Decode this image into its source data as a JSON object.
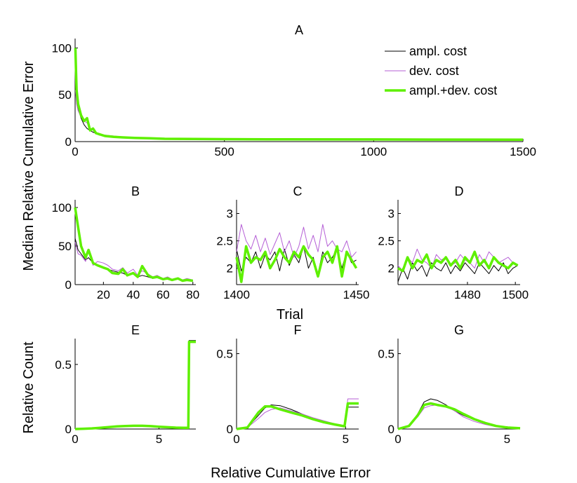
{
  "labels": {
    "ylabel_top": "Median Relative Cumulative Error",
    "xlabel_mid": "Trial",
    "ylabel_bottom": "Relative Count",
    "xlabel_bottom": "Relative Cumulative Error"
  },
  "legend": [
    {
      "name": "ampl. cost",
      "color": "#000000",
      "width": 1
    },
    {
      "name": "dev. cost",
      "color": "#b55fd6",
      "width": 1
    },
    {
      "name": "ampl.+dev. cost",
      "color": "#5ef000",
      "width": 3.5
    }
  ],
  "chart_data": [
    {
      "panel": "A",
      "type": "line",
      "title": "A",
      "xlim": [
        0,
        1500
      ],
      "ylim": [
        0,
        110
      ],
      "xticks": [
        0,
        500,
        1000,
        1500
      ],
      "yticks": [
        0,
        50,
        100
      ],
      "series": [
        {
          "name": "ampl. cost",
          "x": [
            1,
            5,
            10,
            20,
            30,
            40,
            50,
            60,
            70,
            80,
            100,
            130,
            160,
            200,
            250,
            300,
            400,
            500,
            700,
            1000,
            1200,
            1500
          ],
          "y": [
            62,
            48,
            35,
            25,
            18,
            14,
            12,
            10,
            9,
            7,
            6,
            5,
            4.5,
            4,
            3.5,
            3,
            2.8,
            2.6,
            2.4,
            2.3,
            2.2,
            2.1
          ]
        },
        {
          "name": "dev. cost",
          "x": [
            1,
            5,
            10,
            20,
            30,
            40,
            50,
            60,
            70,
            80,
            100,
            130,
            160,
            200,
            250,
            300,
            400,
            500,
            700,
            1000,
            1200,
            1500
          ],
          "y": [
            55,
            40,
            33,
            26,
            22,
            20,
            14,
            13,
            10,
            8,
            7,
            6,
            5,
            4.5,
            4,
            3.5,
            3.2,
            3,
            2.8,
            2.6,
            2.5,
            2.4
          ]
        },
        {
          "name": "ampl.+dev. cost",
          "x": [
            1,
            3,
            5,
            10,
            20,
            30,
            40,
            50,
            60,
            70,
            80,
            100,
            130,
            160,
            200,
            250,
            300,
            400,
            500,
            700,
            1000,
            1200,
            1500
          ],
          "y": [
            100,
            75,
            55,
            40,
            28,
            22,
            25,
            12,
            14,
            9,
            8,
            6,
            5,
            4.5,
            4,
            3.5,
            3,
            2.8,
            2.6,
            2.4,
            2.3,
            2.2,
            2.1
          ]
        }
      ]
    },
    {
      "panel": "B",
      "type": "line",
      "title": "B",
      "xlim": [
        1,
        82
      ],
      "ylim": [
        0,
        110
      ],
      "xticks": [
        20,
        40,
        60,
        80
      ],
      "yticks": [
        0,
        50,
        100
      ],
      "series": [
        {
          "name": "ampl. cost",
          "x": [
            1,
            3,
            5,
            8,
            10,
            13,
            16,
            20,
            23,
            26,
            30,
            33,
            36,
            40,
            43,
            46,
            50,
            53,
            56,
            60,
            63,
            66,
            70,
            73,
            76,
            80
          ],
          "y": [
            60,
            45,
            40,
            32,
            35,
            28,
            24,
            22,
            20,
            18,
            16,
            15,
            12,
            14,
            10,
            12,
            10,
            8,
            9,
            7,
            8,
            6,
            7,
            5,
            6,
            5
          ]
        },
        {
          "name": "dev. cost",
          "x": [
            1,
            3,
            5,
            8,
            10,
            13,
            16,
            20,
            23,
            26,
            30,
            33,
            36,
            40,
            43,
            46,
            50,
            53,
            56,
            60,
            63,
            66,
            70,
            73,
            76,
            80
          ],
          "y": [
            55,
            40,
            38,
            30,
            45,
            25,
            30,
            28,
            25,
            20,
            18,
            22,
            15,
            20,
            12,
            18,
            14,
            10,
            12,
            8,
            10,
            7,
            9,
            6,
            8,
            6
          ]
        },
        {
          "name": "ampl.+dev. cost",
          "x": [
            1,
            3,
            5,
            8,
            10,
            13,
            16,
            20,
            23,
            26,
            30,
            33,
            36,
            40,
            43,
            46,
            50,
            53,
            56,
            60,
            63,
            66,
            70,
            73,
            76,
            80
          ],
          "y": [
            100,
            75,
            50,
            35,
            45,
            28,
            25,
            22,
            20,
            15,
            14,
            20,
            12,
            15,
            10,
            24,
            12,
            9,
            10,
            7,
            8,
            6,
            8,
            5,
            6,
            5
          ]
        }
      ]
    },
    {
      "panel": "C",
      "type": "line",
      "title": "C",
      "xlim": [
        1400,
        1451
      ],
      "ylim": [
        1.7,
        3.25
      ],
      "xticks": [
        1400,
        1450
      ],
      "yticks": [
        2,
        2.5,
        3
      ],
      "series": [
        {
          "name": "ampl. cost",
          "x": [
            1400,
            1402,
            1404,
            1406,
            1408,
            1410,
            1412,
            1414,
            1416,
            1418,
            1420,
            1422,
            1424,
            1426,
            1428,
            1430,
            1432,
            1434,
            1436,
            1438,
            1440,
            1442,
            1444,
            1446,
            1448,
            1450
          ],
          "y": [
            2.35,
            1.95,
            2.2,
            2.1,
            2.3,
            2.0,
            2.25,
            2.15,
            2.3,
            1.95,
            2.35,
            2.05,
            2.25,
            2.1,
            2.4,
            2.0,
            2.2,
            1.9,
            2.3,
            2.1,
            2.2,
            2.35,
            2.0,
            2.3,
            2.1,
            2.15
          ]
        },
        {
          "name": "dev. cost",
          "x": [
            1400,
            1402,
            1404,
            1406,
            1408,
            1410,
            1412,
            1414,
            1416,
            1418,
            1420,
            1422,
            1424,
            1426,
            1428,
            1430,
            1432,
            1434,
            1436,
            1438,
            1440,
            1442,
            1444,
            1446,
            1448,
            1450
          ],
          "y": [
            2.3,
            2.8,
            2.5,
            2.35,
            2.6,
            2.3,
            2.55,
            2.25,
            2.45,
            2.65,
            2.3,
            2.5,
            2.2,
            2.4,
            2.75,
            2.35,
            2.6,
            2.3,
            2.8,
            2.4,
            2.5,
            2.35,
            2.3,
            2.5,
            2.2,
            2.3
          ]
        },
        {
          "name": "ampl.+dev. cost",
          "x": [
            1400,
            1402,
            1404,
            1406,
            1408,
            1410,
            1412,
            1414,
            1416,
            1418,
            1420,
            1422,
            1424,
            1426,
            1428,
            1430,
            1432,
            1434,
            1436,
            1438,
            1440,
            1442,
            1444,
            1446,
            1448,
            1450
          ],
          "y": [
            2.2,
            1.75,
            2.4,
            2.1,
            2.2,
            2.15,
            2.3,
            2.0,
            2.15,
            2.35,
            2.2,
            2.1,
            2.3,
            2.2,
            2.4,
            2.25,
            2.15,
            1.85,
            2.2,
            2.3,
            2.1,
            2.4,
            1.85,
            2.3,
            2.15,
            2.0
          ]
        }
      ]
    },
    {
      "panel": "D",
      "type": "line",
      "title": "D",
      "xlim": [
        1451,
        1502
      ],
      "ylim": [
        1.7,
        3.25
      ],
      "xticks": [
        1480,
        1500
      ],
      "yticks": [
        2,
        2.5,
        3
      ],
      "series": [
        {
          "name": "ampl. cost",
          "x": [
            1451,
            1453,
            1455,
            1457,
            1459,
            1461,
            1463,
            1465,
            1467,
            1469,
            1471,
            1473,
            1475,
            1477,
            1479,
            1481,
            1483,
            1485,
            1487,
            1489,
            1491,
            1493,
            1495,
            1497,
            1499,
            1501
          ],
          "y": [
            1.75,
            2.0,
            1.8,
            2.1,
            1.95,
            2.05,
            1.85,
            2.1,
            2.0,
            1.95,
            2.1,
            1.9,
            2.05,
            1.95,
            2.1,
            2.0,
            1.9,
            2.1,
            2.0,
            1.9,
            2.05,
            1.95,
            2.1,
            1.9,
            2.0,
            2.05
          ]
        },
        {
          "name": "dev. cost",
          "x": [
            1451,
            1453,
            1455,
            1457,
            1459,
            1461,
            1463,
            1465,
            1467,
            1469,
            1471,
            1473,
            1475,
            1477,
            1479,
            1481,
            1483,
            1485,
            1487,
            1489,
            1491,
            1493,
            1495,
            1497,
            1499,
            1501
          ],
          "y": [
            2.05,
            1.95,
            2.2,
            2.1,
            2.35,
            2.15,
            2.1,
            2.0,
            2.25,
            2.15,
            2.2,
            2.05,
            2.1,
            2.25,
            2.15,
            2.1,
            2.0,
            2.25,
            2.1,
            2.3,
            2.2,
            2.1,
            2.15,
            2.2,
            2.1,
            2.05
          ]
        },
        {
          "name": "ampl.+dev. cost",
          "x": [
            1451,
            1453,
            1455,
            1457,
            1459,
            1461,
            1463,
            1465,
            1467,
            1469,
            1471,
            1473,
            1475,
            1477,
            1479,
            1481,
            1483,
            1485,
            1487,
            1489,
            1491,
            1493,
            1495,
            1497,
            1499,
            1501
          ],
          "y": [
            2.0,
            1.95,
            2.2,
            2.0,
            2.15,
            2.1,
            2.25,
            2.0,
            2.15,
            2.1,
            2.2,
            2.05,
            2.15,
            2.0,
            2.2,
            2.1,
            2.3,
            2.05,
            2.15,
            2.0,
            2.2,
            2.1,
            2.05,
            2.0,
            2.1,
            2.05
          ]
        }
      ]
    },
    {
      "panel": "E",
      "type": "line",
      "title": "E",
      "xlim": [
        0,
        7.2
      ],
      "ylim": [
        0,
        0.7
      ],
      "xticks": [
        0,
        5
      ],
      "yticks": [
        0,
        0.5
      ],
      "series": [
        {
          "name": "ampl. cost",
          "x": [
            0,
            0.5,
            1,
            1.5,
            2,
            2.5,
            3,
            3.5,
            4,
            4.5,
            5,
            5.5,
            6,
            6.5,
            6.75,
            6.8,
            7.2
          ],
          "y": [
            0,
            0.002,
            0.005,
            0.01,
            0.015,
            0.02,
            0.025,
            0.025,
            0.025,
            0.022,
            0.018,
            0.015,
            0.012,
            0.01,
            0.01,
            0.685,
            0.685
          ]
        },
        {
          "name": "dev. cost",
          "x": [
            0,
            0.5,
            1,
            1.5,
            2,
            2.5,
            3,
            3.5,
            4,
            4.5,
            5,
            5.5,
            6,
            6.5,
            6.75,
            6.8,
            7.2
          ],
          "y": [
            0,
            0.002,
            0.004,
            0.008,
            0.012,
            0.017,
            0.02,
            0.022,
            0.022,
            0.02,
            0.016,
            0.013,
            0.01,
            0.008,
            0.008,
            0.68,
            0.68
          ]
        },
        {
          "name": "ampl.+dev. cost",
          "x": [
            0,
            0.5,
            1,
            1.5,
            2,
            2.5,
            3,
            3.5,
            4,
            4.5,
            5,
            5.5,
            6,
            6.5,
            6.75,
            6.8,
            7.2
          ],
          "y": [
            0,
            0.002,
            0.005,
            0.01,
            0.015,
            0.02,
            0.023,
            0.025,
            0.025,
            0.022,
            0.018,
            0.014,
            0.011,
            0.009,
            0.009,
            0.675,
            0.675
          ]
        }
      ]
    },
    {
      "panel": "F",
      "type": "line",
      "title": "F",
      "xlim": [
        0,
        5.6
      ],
      "ylim": [
        0,
        0.6
      ],
      "xticks": [
        0,
        5
      ],
      "yticks": [
        0,
        0.5
      ],
      "series": [
        {
          "name": "ampl. cost",
          "x": [
            0,
            0.5,
            1.0,
            1.3,
            1.6,
            2.0,
            2.5,
            3.0,
            3.5,
            4.0,
            4.5,
            4.95,
            5.1,
            5.6
          ],
          "y": [
            0,
            0.01,
            0.09,
            0.14,
            0.16,
            0.155,
            0.13,
            0.1,
            0.07,
            0.045,
            0.025,
            0.015,
            0.145,
            0.145
          ]
        },
        {
          "name": "dev. cost",
          "x": [
            0,
            0.5,
            1.0,
            1.3,
            1.6,
            2.0,
            2.5,
            3.0,
            3.5,
            4.0,
            4.5,
            4.95,
            5.1,
            5.6
          ],
          "y": [
            0,
            0.01,
            0.07,
            0.11,
            0.13,
            0.14,
            0.12,
            0.1,
            0.075,
            0.055,
            0.035,
            0.02,
            0.2,
            0.2
          ]
        },
        {
          "name": "ampl.+dev. cost",
          "x": [
            0,
            0.5,
            1.0,
            1.3,
            1.6,
            2.0,
            2.5,
            3.0,
            3.5,
            4.0,
            4.5,
            4.95,
            5.1,
            5.6
          ],
          "y": [
            0,
            0.01,
            0.11,
            0.15,
            0.15,
            0.13,
            0.11,
            0.09,
            0.065,
            0.045,
            0.03,
            0.018,
            0.17,
            0.17
          ]
        }
      ]
    },
    {
      "panel": "G",
      "type": "line",
      "title": "G",
      "xlim": [
        0,
        5.6
      ],
      "ylim": [
        0,
        0.6
      ],
      "xticks": [
        0,
        5
      ],
      "yticks": [
        0,
        0.5
      ],
      "series": [
        {
          "name": "ampl. cost",
          "x": [
            0,
            0.5,
            0.9,
            1.2,
            1.5,
            1.8,
            2.2,
            2.6,
            3.0,
            3.5,
            4.0,
            4.5,
            5.0,
            5.6
          ],
          "y": [
            0,
            0.02,
            0.1,
            0.18,
            0.2,
            0.19,
            0.16,
            0.12,
            0.09,
            0.06,
            0.035,
            0.02,
            0.01,
            0.005
          ]
        },
        {
          "name": "dev. cost",
          "x": [
            0,
            0.5,
            0.9,
            1.2,
            1.5,
            1.8,
            2.2,
            2.6,
            3.0,
            3.5,
            4.0,
            4.5,
            5.0,
            5.6
          ],
          "y": [
            0,
            0.02,
            0.08,
            0.14,
            0.155,
            0.16,
            0.15,
            0.12,
            0.08,
            0.05,
            0.03,
            0.015,
            0.008,
            0.004
          ]
        },
        {
          "name": "ampl.+dev. cost",
          "x": [
            0,
            0.5,
            0.9,
            1.2,
            1.5,
            1.8,
            2.2,
            2.6,
            3.0,
            3.5,
            4.0,
            4.5,
            5.0,
            5.6
          ],
          "y": [
            0,
            0.02,
            0.09,
            0.16,
            0.17,
            0.16,
            0.15,
            0.13,
            0.1,
            0.065,
            0.04,
            0.02,
            0.01,
            0.005
          ]
        }
      ]
    }
  ]
}
